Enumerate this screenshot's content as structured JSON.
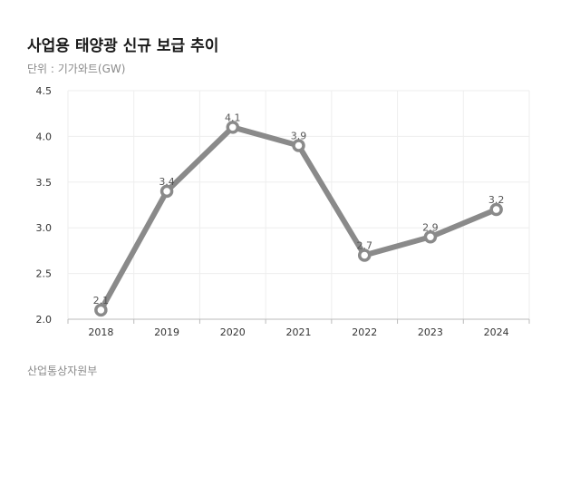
{
  "header": {
    "title": "사업용 태양광 신규 보급 추이",
    "unit": "단위 : 기가와트(GW)"
  },
  "footer": {
    "source": "산업통상자원부"
  },
  "colors": {
    "line": "#8a8a8a",
    "marker_fill": "#ffffff",
    "grid": "#eeeeee",
    "axis": "#bbbbbb"
  },
  "chart_data": {
    "type": "line",
    "title": "사업용 태양광 신규 보급 추이",
    "xlabel": "",
    "ylabel": "단위 : 기가와트(GW)",
    "categories": [
      "2018",
      "2019",
      "2020",
      "2021",
      "2022",
      "2023",
      "2024"
    ],
    "values": [
      2.1,
      3.4,
      4.1,
      3.9,
      2.7,
      2.9,
      3.2
    ],
    "data_labels": [
      "2.1",
      "3.4",
      "4.1",
      "3.9",
      "2.7",
      "2.9",
      "3.2"
    ],
    "ylim": [
      2.0,
      4.5
    ],
    "yticks": [
      "2.0",
      "2.5",
      "3.0",
      "3.5",
      "4.0",
      "4.5"
    ],
    "grid": true,
    "legend": "none"
  }
}
